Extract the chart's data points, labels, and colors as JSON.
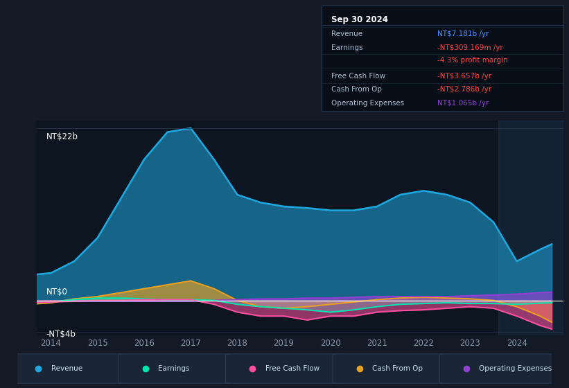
{
  "background_color": "#131a25",
  "plot_bg_color": "#0d1520",
  "title": "Sep 30 2024",
  "years": [
    2013.5,
    2014.0,
    2014.5,
    2015.0,
    2015.5,
    2016.0,
    2016.5,
    2017.0,
    2017.5,
    2018.0,
    2018.5,
    2019.0,
    2019.5,
    2020.0,
    2020.5,
    2021.0,
    2021.5,
    2022.0,
    2022.5,
    2023.0,
    2023.5,
    2024.0,
    2024.5,
    2024.75
  ],
  "revenue": [
    3.2,
    3.5,
    5.0,
    8.0,
    13.0,
    18.0,
    21.5,
    22.0,
    18.0,
    13.5,
    12.5,
    12.0,
    11.8,
    11.5,
    11.5,
    12.0,
    13.5,
    14.0,
    13.5,
    12.5,
    10.0,
    5.0,
    6.5,
    7.181
  ],
  "earnings": [
    -0.3,
    -0.2,
    0.1,
    0.3,
    0.3,
    0.2,
    0.1,
    0.1,
    0.0,
    -0.5,
    -0.8,
    -1.0,
    -1.2,
    -1.5,
    -1.2,
    -0.8,
    -0.5,
    -0.4,
    -0.3,
    -0.4,
    -0.4,
    -0.5,
    -0.35,
    -0.309
  ],
  "free_cash_flow": [
    -0.3,
    -0.2,
    -0.1,
    0.0,
    0.0,
    0.1,
    0.1,
    0.1,
    -0.5,
    -1.5,
    -2.0,
    -2.0,
    -2.5,
    -2.0,
    -2.0,
    -1.5,
    -1.3,
    -1.2,
    -1.0,
    -0.8,
    -1.0,
    -2.0,
    -3.2,
    -3.657
  ],
  "cash_from_op": [
    -0.5,
    -0.3,
    0.2,
    0.5,
    1.0,
    1.5,
    2.0,
    2.5,
    1.5,
    0.0,
    -0.8,
    -1.0,
    -0.8,
    -0.5,
    -0.2,
    0.1,
    0.3,
    0.4,
    0.3,
    0.2,
    0.0,
    -0.8,
    -2.0,
    -2.786
  ],
  "operating_expenses": [
    -0.1,
    -0.1,
    -0.1,
    -0.1,
    -0.1,
    -0.1,
    -0.1,
    -0.1,
    0.0,
    0.1,
    0.2,
    0.2,
    0.3,
    0.3,
    0.4,
    0.5,
    0.5,
    0.5,
    0.5,
    0.6,
    0.7,
    0.8,
    1.0,
    1.065
  ],
  "xlim": [
    2013.7,
    2025.0
  ],
  "ylim": [
    -4.5,
    23.0
  ],
  "zero_line_y": 0,
  "xticks": [
    2014,
    2015,
    2016,
    2017,
    2018,
    2019,
    2020,
    2021,
    2022,
    2023,
    2024
  ],
  "revenue_color": "#1ea8e0",
  "earnings_color": "#00e5b0",
  "fcf_color": "#ff4fa0",
  "cash_from_op_color": "#e8a020",
  "op_expenses_color": "#9040d0",
  "highlight_x_start": 2023.6,
  "legend_items": [
    "Revenue",
    "Earnings",
    "Free Cash Flow",
    "Cash From Op",
    "Operating Expenses"
  ],
  "info_box": {
    "title": "Sep 30 2024",
    "rows": [
      {
        "label": "Revenue",
        "value": "NT$7.181b /yr",
        "value_color": "#4499ff"
      },
      {
        "label": "Earnings",
        "value": "-NT$309.169m /yr",
        "value_color": "#ff4444"
      },
      {
        "label": "",
        "value": "-4.3% profit margin",
        "value_color": "#ff4444"
      },
      {
        "label": "Free Cash Flow",
        "value": "-NT$3.657b /yr",
        "value_color": "#ff4444"
      },
      {
        "label": "Cash From Op",
        "value": "-NT$2.786b /yr",
        "value_color": "#ff4444"
      },
      {
        "label": "Operating Expenses",
        "value": "NT$1.065b /yr",
        "value_color": "#9040d0"
      }
    ]
  }
}
